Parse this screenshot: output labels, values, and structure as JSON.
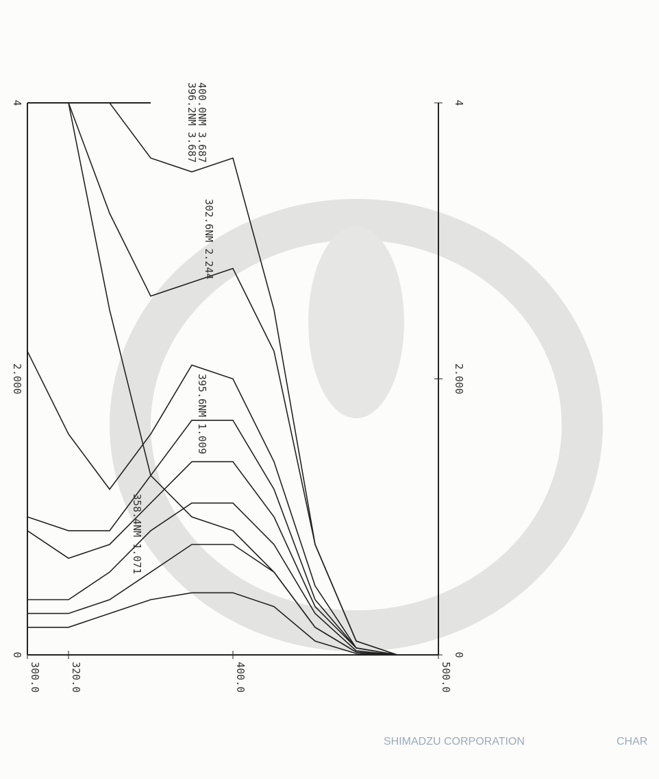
{
  "chart_data": {
    "type": "line",
    "x": [
      300,
      320,
      340,
      360,
      380,
      400,
      420,
      440,
      460,
      480,
      500
    ],
    "series": [
      {
        "color": "#222222",
        "values": [
          4,
          4,
          4,
          3.6,
          3.5,
          3.6,
          2.5,
          0.8,
          0.1,
          0,
          0
        ]
      },
      {
        "color": "#222222",
        "values": [
          4,
          4,
          3.2,
          2.6,
          2.7,
          2.8,
          2.2,
          0.8,
          0.1,
          0,
          0
        ]
      },
      {
        "color": "#222222",
        "values": [
          4,
          4,
          2.5,
          1.3,
          1.0,
          0.9,
          0.6,
          0.2,
          0.02,
          0,
          0
        ]
      },
      {
        "color": "#222222",
        "values": [
          2.2,
          1.6,
          1.2,
          1.6,
          2.1,
          2.0,
          1.4,
          0.5,
          0.05,
          0,
          0
        ]
      },
      {
        "color": "#222222",
        "values": [
          1.0,
          0.9,
          0.9,
          1.3,
          1.7,
          1.7,
          1.2,
          0.4,
          0.05,
          0,
          0
        ]
      },
      {
        "color": "#222222",
        "values": [
          0.9,
          0.7,
          0.8,
          1.1,
          1.4,
          1.4,
          1.0,
          0.35,
          0.05,
          0,
          0
        ]
      },
      {
        "color": "#222222",
        "values": [
          0.4,
          0.4,
          0.6,
          0.9,
          1.1,
          1.1,
          0.8,
          0.3,
          0.03,
          0,
          0
        ]
      },
      {
        "color": "#222222",
        "values": [
          0.3,
          0.3,
          0.4,
          0.6,
          0.8,
          0.8,
          0.6,
          0.2,
          0.02,
          0,
          0
        ]
      },
      {
        "color": "#222222",
        "values": [
          0.2,
          0.2,
          0.3,
          0.4,
          0.45,
          0.45,
          0.35,
          0.1,
          0.01,
          0,
          0
        ]
      }
    ],
    "xlim": [
      300,
      500
    ],
    "xticks": [
      {
        "value": 300,
        "label": "300.0"
      },
      {
        "value": 320,
        "label": "320.0"
      },
      {
        "value": 400,
        "label": "400.0"
      },
      {
        "value": 500,
        "label": "500.0"
      }
    ],
    "ylim": [
      0,
      4
    ],
    "yticks": [
      0,
      {
        "value": 2,
        "label": "2.000"
      },
      4
    ],
    "annotations": [
      "400.0NM 3.687",
      "396.2NM 3.687",
      "302.6NM 2.244",
      "395.6NM 1.009",
      "358.4NM 1.071"
    ],
    "footer": [
      "SHIMADZU CORPORATION",
      "CHAR"
    ]
  }
}
